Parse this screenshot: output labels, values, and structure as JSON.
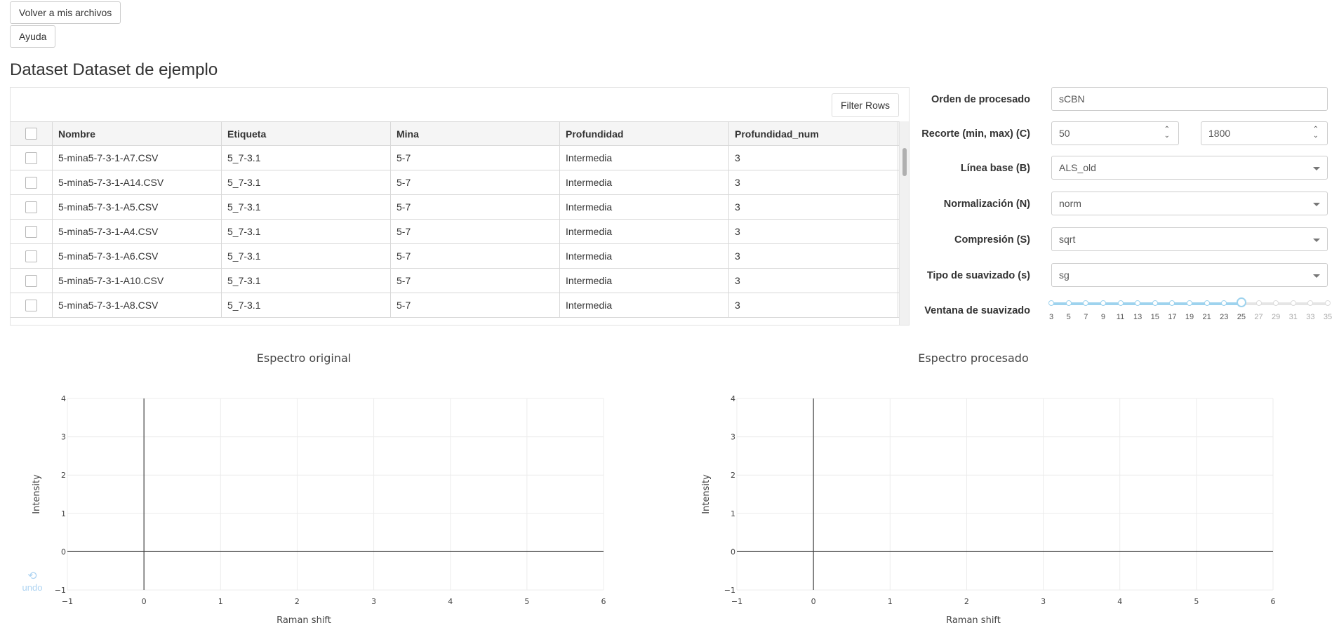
{
  "header": {
    "back_button": "Volver a mis archivos",
    "help_button": "Ayuda",
    "title": "Dataset Dataset de ejemplo"
  },
  "table": {
    "filter_button": "Filter Rows",
    "columns": [
      "Nombre",
      "Etiqueta",
      "Mina",
      "Profundidad",
      "Profundidad_num"
    ],
    "rows": [
      [
        "5-mina5-7-3-1-A7.CSV",
        "5_7-3.1",
        "5-7",
        "Intermedia",
        "3"
      ],
      [
        "5-mina5-7-3-1-A14.CSV",
        "5_7-3.1",
        "5-7",
        "Intermedia",
        "3"
      ],
      [
        "5-mina5-7-3-1-A5.CSV",
        "5_7-3.1",
        "5-7",
        "Intermedia",
        "3"
      ],
      [
        "5-mina5-7-3-1-A4.CSV",
        "5_7-3.1",
        "5-7",
        "Intermedia",
        "3"
      ],
      [
        "5-mina5-7-3-1-A6.CSV",
        "5_7-3.1",
        "5-7",
        "Intermedia",
        "3"
      ],
      [
        "5-mina5-7-3-1-A10.CSV",
        "5_7-3.1",
        "5-7",
        "Intermedia",
        "3"
      ],
      [
        "5-mina5-7-3-1-A8.CSV",
        "5_7-3.1",
        "5-7",
        "Intermedia",
        "3"
      ]
    ]
  },
  "form": {
    "orden_label": "Orden de procesado",
    "orden_value": "sCBN",
    "recorte_label": "Recorte (min, max) (C)",
    "recorte_min": "50",
    "recorte_max": "1800",
    "linea_label": "Línea base (B)",
    "linea_value": "ALS_old",
    "norm_label": "Normalización (N)",
    "norm_value": "norm",
    "comp_label": "Compresión (S)",
    "comp_value": "sqrt",
    "suav_label": "Tipo de suavizado (s)",
    "suav_value": "sg",
    "ventana_label": "Ventana de suavizado",
    "ventana_ticks": [
      "3",
      "5",
      "7",
      "9",
      "11",
      "13",
      "15",
      "17",
      "19",
      "21",
      "23",
      "25",
      "27",
      "29",
      "31",
      "33",
      "35"
    ],
    "ventana_value": 25
  },
  "chart_data": [
    {
      "type": "line",
      "title": "Espectro original",
      "xlabel": "Raman shift",
      "ylabel": "Intensity",
      "xlim": [
        -1,
        6
      ],
      "ylim": [
        -1,
        4
      ],
      "xticks": [
        "−1",
        "0",
        "1",
        "2",
        "3",
        "4",
        "5",
        "6"
      ],
      "yticks": [
        "−1",
        "0",
        "1",
        "2",
        "3",
        "4"
      ],
      "series": []
    },
    {
      "type": "line",
      "title": "Espectro procesado",
      "xlabel": "Raman shift",
      "ylabel": "Intensity",
      "xlim": [
        -1,
        6
      ],
      "ylim": [
        -1,
        4
      ],
      "xticks": [
        "−1",
        "0",
        "1",
        "2",
        "3",
        "4",
        "5",
        "6"
      ],
      "yticks": [
        "−1",
        "0",
        "1",
        "2",
        "3",
        "4"
      ],
      "series": []
    }
  ],
  "undo": {
    "icon": "undo-icon",
    "label": "undo"
  }
}
